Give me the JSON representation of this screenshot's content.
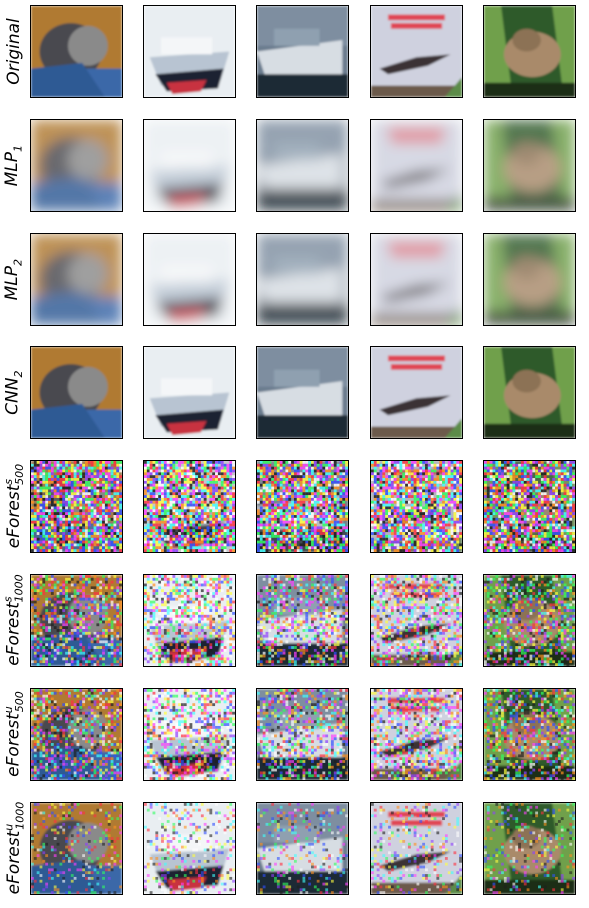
{
  "row_labels": [
    {
      "main": "Original",
      "sub": "",
      "sup": ""
    },
    {
      "main": "MLP",
      "sub": "1",
      "sup": ""
    },
    {
      "main": "MLP",
      "sub": "2",
      "sup": ""
    },
    {
      "main": "CNN",
      "sub": "2",
      "sup": ""
    },
    {
      "main": "eForest",
      "sub": "500",
      "sup": "s"
    },
    {
      "main": "eForest",
      "sub": "1000",
      "sup": "s"
    },
    {
      "main": "eForest",
      "sub": "500",
      "sup": "u"
    },
    {
      "main": "eForest",
      "sub": "1000",
      "sup": "u"
    }
  ],
  "images": [
    {
      "name": "cat",
      "palette": {
        "bg": "#b07a30",
        "a": "#4a4a4f",
        "b": "#3b68a8",
        "c": "#8a8a8a"
      }
    },
    {
      "name": "ship-1",
      "palette": {
        "bg": "#e9eef2",
        "a": "#1e2430",
        "b": "#c83040",
        "c": "#b8c4d2"
      }
    },
    {
      "name": "ship-2",
      "palette": {
        "bg": "#6a7c8e",
        "a": "#1e2a36",
        "b": "#d7dde3",
        "c": "#8fa0b0"
      }
    },
    {
      "name": "book-airplane",
      "palette": {
        "bg": "#cfd1df",
        "a": "#3a3236",
        "b": "#e04452",
        "c": "#5c8c4a"
      }
    },
    {
      "name": "frog",
      "palette": {
        "bg": "#2e5a2c",
        "a": "#a98a6a",
        "b": "#6fa04c",
        "c": "#1a2e18"
      }
    }
  ],
  "row_styles": [
    "original",
    "blur",
    "blur",
    "sharp",
    "noise-heavy",
    "noise-medium",
    "noise-medium",
    "noise-light"
  ]
}
